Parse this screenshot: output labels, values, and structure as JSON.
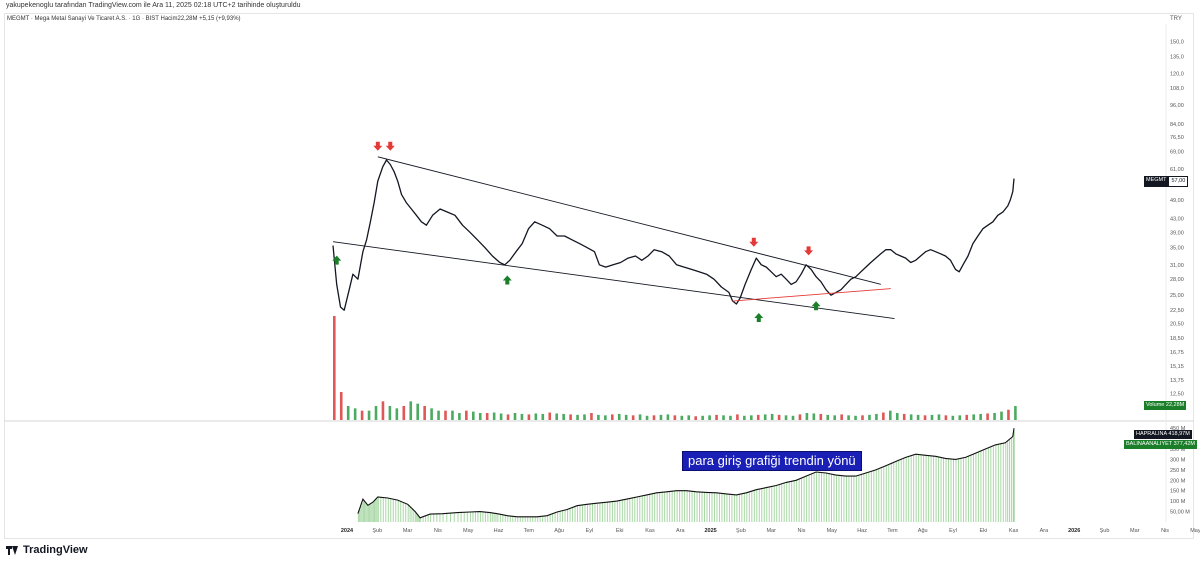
{
  "header": {
    "caption": "yakupekenoglu tarafından TradingView.com ile Ara 11, 2025 02:18 UTC+2 tarihinde oluşturuldu",
    "symbol_line": "MEGMT · Mega Metal Sanayi Ve Ticaret A.S. · 1G · BIST   Hacim22,28M  +5,15 (+9,93%)",
    "currency": "TRY"
  },
  "footer": {
    "logo_text": "TradingView"
  },
  "annotation": {
    "text": "para giriş grafiği trendin yönü"
  },
  "tags": {
    "price_symbol": "MEGMT",
    "price_value": "57,00",
    "volume_label": "Volume",
    "volume_value": "22,28M",
    "ind1_label": "HAPRALINA",
    "ind1_value": "418,97M",
    "ind2_label": "BALINAANALIYET",
    "ind2_value": "377,42M"
  },
  "colors": {
    "candle_up": "#26a69a",
    "price_line": "#131722",
    "trendline": "#131722",
    "support_line": "#e53935",
    "arrow_down": "#e53935",
    "arrow_up": "#1b7f2a",
    "volume_up": "#2e9b46",
    "volume_down": "#d93a3a",
    "flow_bar": "#9fd49b",
    "flow_line": "#111111",
    "note_bg": "#1a1fb5"
  },
  "chart_data": [
    {
      "type": "line",
      "title": "",
      "y_scale": "log",
      "ylim": [
        10.5,
        170
      ],
      "x_tick_labels": [
        "2024",
        "Şub",
        "Mar",
        "Nis",
        "May",
        "Haz",
        "Tem",
        "Ağu",
        "Eyl",
        "Eki",
        "Kas",
        "Ara",
        "2025",
        "Şub",
        "Mar",
        "Nis",
        "May",
        "Haz",
        "Tem",
        "Ağu",
        "Eyl",
        "Eki",
        "Kas",
        "Ara",
        "2026",
        "Şub",
        "Mar",
        "Nis",
        "May"
      ],
      "y_tick_labels": [
        "150,0",
        "135,0",
        "120,0",
        "108,0",
        "96,00",
        "84,00",
        "76,50",
        "69,00",
        "61,00",
        "55,00",
        "49,00",
        "43,00",
        "39,00",
        "35,00",
        "31,00",
        "28,00",
        "25,00",
        "22,50",
        "20,50",
        "18,50",
        "16,75",
        "15,15",
        "13,75",
        "12,50",
        "11,45"
      ],
      "series": [
        {
          "points": [
            [
              0,
              35.5
            ],
            [
              3,
              27
            ],
            [
              6,
              23
            ],
            [
              9,
              22.5
            ],
            [
              13,
              26
            ],
            [
              16,
              29
            ],
            [
              20,
              28
            ],
            [
              24,
              34
            ],
            [
              27,
              37
            ],
            [
              30,
              42
            ],
            [
              33,
              48
            ],
            [
              36,
              56
            ],
            [
              40,
              62
            ],
            [
              43,
              65
            ],
            [
              46,
              63
            ],
            [
              49,
              60
            ],
            [
              52,
              56
            ],
            [
              55,
              51
            ],
            [
              59,
              48
            ],
            [
              63,
              46
            ],
            [
              67,
              44
            ],
            [
              71,
              42
            ],
            [
              75,
              41
            ],
            [
              80,
              44
            ],
            [
              86,
              46
            ],
            [
              92,
              45
            ],
            [
              98,
              44
            ],
            [
              104,
              41
            ],
            [
              110,
              39
            ],
            [
              116,
              37
            ],
            [
              122,
              35
            ],
            [
              128,
              33
            ],
            [
              134,
              31.5
            ],
            [
              138,
              31
            ],
            [
              142,
              32
            ],
            [
              147,
              34
            ],
            [
              152,
              36
            ],
            [
              157,
              40
            ],
            [
              162,
              42
            ],
            [
              168,
              41
            ],
            [
              174,
              40
            ],
            [
              180,
              38
            ],
            [
              186,
              38
            ],
            [
              192,
              37
            ],
            [
              198,
              36
            ],
            [
              204,
              35
            ],
            [
              210,
              34
            ],
            [
              214,
              31
            ],
            [
              219,
              30.5
            ],
            [
              225,
              31
            ],
            [
              231,
              31.5
            ],
            [
              237,
              32.5
            ],
            [
              243,
              33
            ],
            [
              248,
              32
            ],
            [
              253,
              33
            ],
            [
              258,
              34.5
            ],
            [
              264,
              34
            ],
            [
              270,
              33
            ],
            [
              276,
              31
            ],
            [
              282,
              30.5
            ],
            [
              288,
              30
            ],
            [
              294,
              29.5
            ],
            [
              300,
              29
            ],
            [
              306,
              28
            ],
            [
              312,
              26.5
            ],
            [
              318,
              25.5
            ],
            [
              321,
              24
            ],
            [
              324,
              23.5
            ],
            [
              327,
              24.5
            ],
            [
              331,
              27
            ],
            [
              336,
              30
            ],
            [
              340,
              32.5
            ],
            [
              344,
              31
            ],
            [
              348,
              30.5
            ],
            [
              352,
              29.5
            ],
            [
              356,
              28.5
            ],
            [
              360,
              29
            ],
            [
              364,
              28
            ],
            [
              368,
              27
            ],
            [
              372,
              27.5
            ],
            [
              376,
              29
            ],
            [
              380,
              31
            ],
            [
              384,
              30
            ],
            [
              388,
              28.5
            ],
            [
              392,
              27.5
            ],
            [
              396,
              26
            ],
            [
              400,
              25
            ],
            [
              404,
              25.5
            ],
            [
              408,
              26
            ],
            [
              412,
              27
            ],
            [
              416,
              28
            ],
            [
              420,
              28.5
            ],
            [
              424,
              29.5
            ],
            [
              428,
              30.5
            ],
            [
              432,
              31.5
            ],
            [
              436,
              32.5
            ],
            [
              440,
              33.5
            ],
            [
              444,
              34.5
            ],
            [
              448,
              34.5
            ],
            [
              452,
              33.5
            ],
            [
              456,
              33
            ],
            [
              460,
              32.5
            ],
            [
              464,
              31.5
            ],
            [
              468,
              32
            ],
            [
              472,
              33
            ],
            [
              476,
              34
            ],
            [
              480,
              34.5
            ],
            [
              484,
              34
            ],
            [
              488,
              33.5
            ],
            [
              492,
              33
            ],
            [
              496,
              32
            ],
            [
              500,
              30
            ],
            [
              503,
              29.5
            ],
            [
              506,
              31
            ],
            [
              510,
              33
            ],
            [
              514,
              36
            ],
            [
              518,
              38
            ],
            [
              522,
              40
            ],
            [
              526,
              41
            ],
            [
              530,
              42
            ],
            [
              534,
              44
            ],
            [
              538,
              45
            ],
            [
              542,
              47
            ],
            [
              544,
              49
            ],
            [
              546,
              52
            ],
            [
              547,
              57
            ]
          ]
        }
      ],
      "trendlines": {
        "upper": [
          [
            36,
            66.5
          ],
          [
            440,
            27
          ]
        ],
        "lower": [
          [
            0,
            36.5
          ],
          [
            451,
            21.2
          ]
        ],
        "support": [
          [
            321,
            24
          ],
          [
            448,
            26.2
          ]
        ]
      },
      "arrows_down": [
        [
          36,
          67
        ],
        [
          46,
          67
        ],
        [
          338,
          34
        ],
        [
          382,
          32
        ]
      ],
      "arrows_up": [
        [
          3,
          34.5
        ],
        [
          140,
          30
        ],
        [
          342,
          23
        ],
        [
          388,
          25
        ]
      ]
    },
    {
      "type": "bar",
      "title": "Volume",
      "max_value": 22.28,
      "values": [
        22.28,
        6,
        3,
        2.5,
        2,
        2,
        3,
        4,
        3,
        2.5,
        3,
        4,
        3.5,
        3,
        2.5,
        2,
        2,
        2,
        1.5,
        2,
        1.8,
        1.5,
        1.5,
        1.6,
        1.4,
        1.2,
        1.5,
        1.3,
        1.2,
        1.4,
        1.3,
        1.6,
        1.4,
        1.3,
        1.2,
        1.1,
        1.2,
        1.5,
        1.1,
        1,
        1.2,
        1.3,
        1.1,
        1,
        1.2,
        0.9,
        1,
        1.1,
        1.2,
        1,
        0.9,
        1,
        0.8,
        0.9,
        1,
        1.1,
        1,
        0.9,
        1.2,
        0.9,
        1,
        1.1,
        1.2,
        1.3,
        1.1,
        1,
        0.9,
        1.2,
        1.5,
        1.4,
        1.3,
        1.1,
        1,
        1.2,
        1,
        0.9,
        1,
        1.1,
        1.3,
        1.6,
        2,
        1.5,
        1.3,
        1.2,
        1.1,
        1,
        1.1,
        1.2,
        1,
        0.9,
        1,
        1.1,
        1.2,
        1.3,
        1.4,
        1.5,
        1.8,
        2.2,
        3
      ]
    },
    {
      "type": "area",
      "title": "",
      "ylim": [
        0,
        470
      ],
      "y_tick_labels": [
        "450 M",
        "418,97M",
        "377,42M",
        "350 M",
        "300 M",
        "250 M",
        "200 M",
        "150 M",
        "100 M",
        "50,00 M"
      ],
      "points": [
        [
          20,
          40
        ],
        [
          24,
          110
        ],
        [
          28,
          80
        ],
        [
          32,
          95
        ],
        [
          36,
          120
        ],
        [
          44,
          115
        ],
        [
          52,
          105
        ],
        [
          60,
          85
        ],
        [
          66,
          50
        ],
        [
          70,
          20
        ],
        [
          78,
          38
        ],
        [
          88,
          40
        ],
        [
          100,
          45
        ],
        [
          110,
          48
        ],
        [
          118,
          50
        ],
        [
          126,
          45
        ],
        [
          132,
          40
        ],
        [
          140,
          30
        ],
        [
          148,
          25
        ],
        [
          156,
          25
        ],
        [
          164,
          25
        ],
        [
          172,
          30
        ],
        [
          180,
          48
        ],
        [
          188,
          60
        ],
        [
          196,
          78
        ],
        [
          204,
          85
        ],
        [
          212,
          90
        ],
        [
          220,
          95
        ],
        [
          228,
          100
        ],
        [
          236,
          110
        ],
        [
          244,
          120
        ],
        [
          252,
          130
        ],
        [
          260,
          140
        ],
        [
          268,
          145
        ],
        [
          276,
          150
        ],
        [
          284,
          150
        ],
        [
          292,
          145
        ],
        [
          300,
          142
        ],
        [
          308,
          140
        ],
        [
          316,
          135
        ],
        [
          324,
          130
        ],
        [
          332,
          140
        ],
        [
          340,
          155
        ],
        [
          348,
          165
        ],
        [
          356,
          175
        ],
        [
          364,
          190
        ],
        [
          372,
          200
        ],
        [
          380,
          220
        ],
        [
          388,
          240
        ],
        [
          396,
          235
        ],
        [
          404,
          225
        ],
        [
          412,
          220
        ],
        [
          420,
          220
        ],
        [
          428,
          235
        ],
        [
          436,
          250
        ],
        [
          444,
          270
        ],
        [
          452,
          290
        ],
        [
          460,
          310
        ],
        [
          468,
          325
        ],
        [
          476,
          320
        ],
        [
          484,
          315
        ],
        [
          492,
          305
        ],
        [
          500,
          300
        ],
        [
          508,
          310
        ],
        [
          516,
          330
        ],
        [
          524,
          350
        ],
        [
          532,
          370
        ],
        [
          540,
          380
        ],
        [
          546,
          410
        ],
        [
          547,
          450
        ]
      ]
    }
  ]
}
